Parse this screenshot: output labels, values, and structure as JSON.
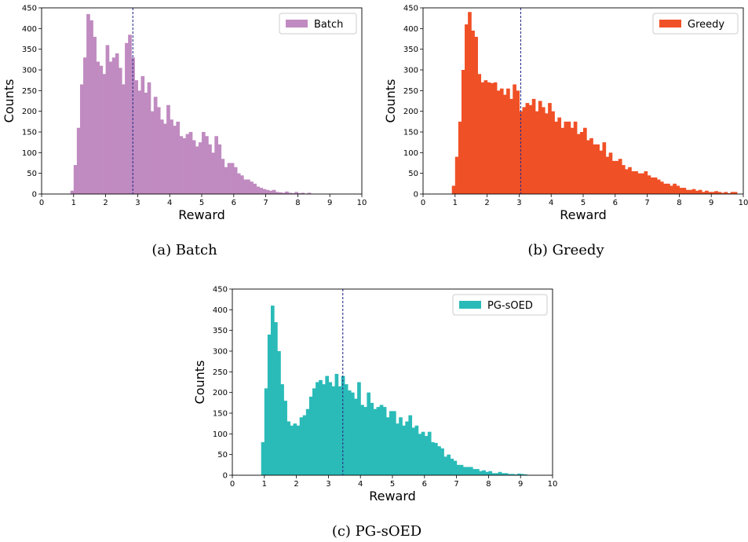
{
  "chart_data": [
    {
      "type": "bar",
      "caption": "(a)  Batch",
      "xlabel": "Reward",
      "ylabel": "Counts",
      "xlim": [
        0,
        10
      ],
      "ylim": [
        0,
        450
      ],
      "xticks": [
        "0",
        "1",
        "2",
        "3",
        "4",
        "5",
        "6",
        "7",
        "8",
        "9",
        "10"
      ],
      "yticks": [
        "0",
        "50",
        "100",
        "150",
        "200",
        "250",
        "300",
        "350",
        "400",
        "450"
      ],
      "legend": {
        "position": "top-right"
      },
      "mean_line": 2.85,
      "series": [
        {
          "name": "Batch",
          "color": "#c08bc1",
          "bin_start": 0.9,
          "bin_width": 0.1,
          "values": [
            8,
            70,
            160,
            265,
            330,
            435,
            420,
            380,
            320,
            310,
            290,
            360,
            320,
            330,
            340,
            305,
            265,
            365,
            385,
            330,
            275,
            250,
            285,
            245,
            270,
            200,
            235,
            210,
            180,
            170,
            215,
            180,
            165,
            175,
            140,
            135,
            145,
            150,
            130,
            115,
            125,
            150,
            140,
            120,
            100,
            140,
            120,
            85,
            65,
            75,
            75,
            65,
            50,
            45,
            35,
            35,
            30,
            25,
            18,
            15,
            12,
            10,
            8,
            10,
            5,
            4,
            3,
            6,
            3,
            2,
            5,
            2,
            3,
            1,
            3
          ]
        }
      ]
    },
    {
      "type": "bar",
      "caption": "(b)  Greedy",
      "xlabel": "Reward",
      "ylabel": "Counts",
      "xlim": [
        0,
        10
      ],
      "ylim": [
        0,
        450
      ],
      "xticks": [
        "0",
        "1",
        "2",
        "3",
        "4",
        "5",
        "6",
        "7",
        "8",
        "9",
        "10"
      ],
      "yticks": [
        "0",
        "50",
        "100",
        "150",
        "200",
        "250",
        "300",
        "350",
        "400",
        "450"
      ],
      "legend": {
        "position": "top-right"
      },
      "mean_line": 3.05,
      "series": [
        {
          "name": "Greedy",
          "color": "#f05026",
          "bin_start": 0.9,
          "bin_width": 0.1,
          "values": [
            20,
            90,
            175,
            300,
            410,
            440,
            395,
            380,
            290,
            270,
            275,
            270,
            268,
            270,
            250,
            255,
            240,
            255,
            230,
            265,
            250,
            200,
            210,
            220,
            215,
            230,
            200,
            225,
            210,
            195,
            220,
            200,
            175,
            185,
            160,
            175,
            175,
            160,
            175,
            145,
            150,
            160,
            130,
            135,
            120,
            120,
            105,
            125,
            90,
            100,
            80,
            80,
            85,
            70,
            60,
            65,
            55,
            55,
            50,
            50,
            55,
            45,
            40,
            40,
            35,
            30,
            25,
            25,
            20,
            25,
            20,
            15,
            15,
            10,
            10,
            12,
            8,
            10,
            5,
            8,
            5,
            5,
            7,
            5,
            3,
            5,
            2,
            5,
            5
          ]
        }
      ]
    },
    {
      "type": "bar",
      "caption": "(c)  PG-sOED",
      "xlabel": "Reward",
      "ylabel": "Counts",
      "xlim": [
        0,
        10
      ],
      "ylim": [
        0,
        450
      ],
      "xticks": [
        "0",
        "1",
        "2",
        "3",
        "4",
        "5",
        "6",
        "7",
        "8",
        "9",
        "10"
      ],
      "yticks": [
        "0",
        "50",
        "100",
        "150",
        "200",
        "250",
        "300",
        "350",
        "400",
        "450"
      ],
      "legend": {
        "position": "top-right"
      },
      "mean_line": 3.45,
      "series": [
        {
          "name": "PG-sOED",
          "color": "#2abbb8",
          "bin_start": 0.9,
          "bin_width": 0.1,
          "values": [
            80,
            210,
            340,
            410,
            370,
            300,
            220,
            180,
            130,
            120,
            125,
            120,
            140,
            145,
            160,
            190,
            210,
            225,
            230,
            220,
            240,
            225,
            215,
            245,
            215,
            240,
            220,
            205,
            200,
            185,
            225,
            170,
            165,
            200,
            175,
            160,
            165,
            170,
            165,
            140,
            155,
            155,
            125,
            140,
            120,
            130,
            145,
            115,
            120,
            100,
            105,
            95,
            105,
            80,
            78,
            70,
            65,
            45,
            50,
            40,
            35,
            25,
            25,
            20,
            20,
            20,
            15,
            15,
            10,
            12,
            8,
            10,
            5,
            5,
            8,
            5,
            5,
            3,
            3,
            2,
            4,
            3,
            2
          ]
        }
      ]
    }
  ]
}
